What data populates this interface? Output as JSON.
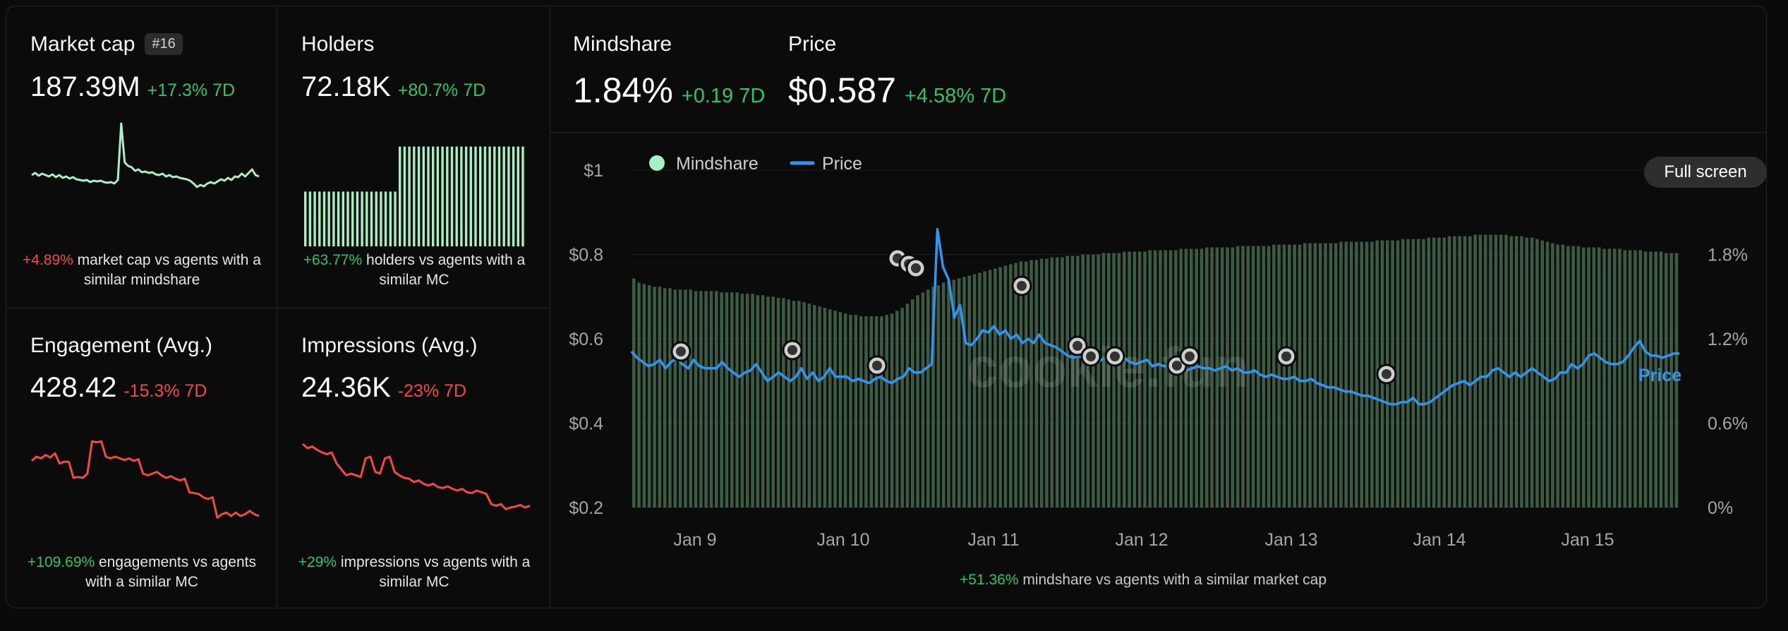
{
  "colors": {
    "green": "#31c463",
    "red": "#f04a43",
    "mint": "#a6f0c6",
    "blue": "#2f96f0",
    "bar": "#3d5a43"
  },
  "cards": {
    "market_cap": {
      "title": "Market cap",
      "rank": "#16",
      "value": "187.39M",
      "change": "+17.3% 7D",
      "foot_pct": "+4.89%",
      "foot_text": " market cap vs agents with a similar mindshare"
    },
    "holders": {
      "title": "Holders",
      "value": "72.18K",
      "change": "+80.7% 7D",
      "foot_pct": "+63.77%",
      "foot_text": " holders vs agents with a similar MC"
    },
    "engagement": {
      "title": "Engagement (Avg.)",
      "value": "428.42",
      "change": "-15.3% 7D",
      "foot_pct": "+109.69%",
      "foot_text": " engagements vs agents with a similar MC"
    },
    "impressions": {
      "title": "Impressions (Avg.)",
      "value": "24.36K",
      "change": "-23% 7D",
      "foot_pct": "+29%",
      "foot_text": " impressions vs agents with a similar MC"
    }
  },
  "header": {
    "mindshare_title": "Mindshare",
    "mindshare_value": "1.84%",
    "mindshare_change": "+0.19 7D",
    "price_title": "Price",
    "price_value": "$0.587",
    "price_change": "+4.58% 7D"
  },
  "controls": {
    "fullscreen_label": "Full screen"
  },
  "watermark": "cookie.fun",
  "chart_data": {
    "type": "bar+line",
    "legend": [
      "Mindshare",
      "Price"
    ],
    "series_label": "Price",
    "y_left": {
      "ticks": [
        "$1",
        "$0.8",
        "$0.6",
        "$0.4",
        "$0.2"
      ],
      "range": [
        0.2,
        1.0
      ]
    },
    "y_right": {
      "ticks": [
        "1.8%",
        "1.2%",
        "0.6%",
        "0%"
      ],
      "range": [
        0,
        2.4
      ]
    },
    "x_ticks": [
      "Jan 9",
      "Jan 10",
      "Jan 11",
      "Jan 12",
      "Jan 13",
      "Jan 14",
      "Jan 15"
    ],
    "mindshare_pct": [
      1.63,
      1.6,
      1.59,
      1.58,
      1.57,
      1.57,
      1.56,
      1.56,
      1.55,
      1.55,
      1.55,
      1.55,
      1.54,
      1.54,
      1.54,
      1.54,
      1.54,
      1.53,
      1.53,
      1.53,
      1.53,
      1.52,
      1.52,
      1.52,
      1.51,
      1.51,
      1.5,
      1.5,
      1.49,
      1.49,
      1.48,
      1.47,
      1.47,
      1.46,
      1.45,
      1.44,
      1.43,
      1.42,
      1.41,
      1.4,
      1.39,
      1.38,
      1.37,
      1.37,
      1.36,
      1.36,
      1.36,
      1.36,
      1.36,
      1.37,
      1.38,
      1.4,
      1.42,
      1.45,
      1.48,
      1.51,
      1.53,
      1.55,
      1.57,
      1.58,
      1.6,
      1.61,
      1.62,
      1.63,
      1.64,
      1.65,
      1.66,
      1.67,
      1.68,
      1.69,
      1.7,
      1.71,
      1.72,
      1.73,
      1.74,
      1.75,
      1.75,
      1.76,
      1.76,
      1.77,
      1.77,
      1.78,
      1.78,
      1.78,
      1.79,
      1.79,
      1.79,
      1.8,
      1.8,
      1.8,
      1.8,
      1.81,
      1.81,
      1.81,
      1.81,
      1.82,
      1.82,
      1.82,
      1.82,
      1.82,
      1.83,
      1.83,
      1.83,
      1.83,
      1.83,
      1.83,
      1.84,
      1.84,
      1.84,
      1.84,
      1.84,
      1.85,
      1.85,
      1.85,
      1.85,
      1.85,
      1.85,
      1.86,
      1.86,
      1.86,
      1.86,
      1.86,
      1.86,
      1.86,
      1.87,
      1.87,
      1.87,
      1.87,
      1.87,
      1.87,
      1.88,
      1.88,
      1.88,
      1.88,
      1.88,
      1.88,
      1.88,
      1.89,
      1.89,
      1.89,
      1.89,
      1.89,
      1.89,
      1.89,
      1.9,
      1.9,
      1.9,
      1.9,
      1.9,
      1.91,
      1.91,
      1.91,
      1.91,
      1.91,
      1.92,
      1.92,
      1.92,
      1.92,
      1.93,
      1.93,
      1.93,
      1.93,
      1.93,
      1.94,
      1.94,
      1.94,
      1.94,
      1.94,
      1.94,
      1.94,
      1.93,
      1.93,
      1.93,
      1.92,
      1.92,
      1.91,
      1.9,
      1.89,
      1.88,
      1.87,
      1.87,
      1.86,
      1.86,
      1.86,
      1.85,
      1.85,
      1.85,
      1.85,
      1.84,
      1.84,
      1.84,
      1.84,
      1.83,
      1.83,
      1.83,
      1.83,
      1.82,
      1.82,
      1.82,
      1.82,
      1.81,
      1.81,
      1.81
    ],
    "price": [
      0.57,
      0.555,
      0.545,
      0.535,
      0.54,
      0.55,
      0.53,
      0.545,
      0.555,
      0.54,
      0.53,
      0.55,
      0.535,
      0.53,
      0.53,
      0.53,
      0.545,
      0.53,
      0.52,
      0.51,
      0.52,
      0.525,
      0.54,
      0.52,
      0.5,
      0.51,
      0.52,
      0.51,
      0.5,
      0.51,
      0.53,
      0.505,
      0.52,
      0.5,
      0.51,
      0.53,
      0.51,
      0.51,
      0.51,
      0.5,
      0.505,
      0.5,
      0.495,
      0.505,
      0.51,
      0.5,
      0.495,
      0.505,
      0.51,
      0.53,
      0.52,
      0.52,
      0.53,
      0.54,
      0.86,
      0.77,
      0.74,
      0.65,
      0.68,
      0.59,
      0.585,
      0.6,
      0.62,
      0.615,
      0.63,
      0.61,
      0.62,
      0.6,
      0.61,
      0.59,
      0.6,
      0.59,
      0.61,
      0.59,
      0.585,
      0.58,
      0.57,
      0.56,
      0.555,
      0.56,
      0.55,
      0.545,
      0.545,
      0.55,
      0.56,
      0.56,
      0.545,
      0.555,
      0.545,
      0.54,
      0.545,
      0.55,
      0.535,
      0.54,
      0.535,
      0.535,
      0.54,
      0.535,
      0.525,
      0.53,
      0.535,
      0.53,
      0.53,
      0.525,
      0.53,
      0.535,
      0.525,
      0.53,
      0.52,
      0.52,
      0.525,
      0.515,
      0.51,
      0.515,
      0.51,
      0.505,
      0.505,
      0.51,
      0.5,
      0.5,
      0.505,
      0.495,
      0.49,
      0.485,
      0.485,
      0.48,
      0.475,
      0.475,
      0.47,
      0.465,
      0.465,
      0.46,
      0.455,
      0.45,
      0.445,
      0.445,
      0.45,
      0.45,
      0.46,
      0.445,
      0.445,
      0.45,
      0.46,
      0.47,
      0.48,
      0.49,
      0.495,
      0.5,
      0.49,
      0.5,
      0.51,
      0.51,
      0.525,
      0.53,
      0.52,
      0.51,
      0.52,
      0.51,
      0.52,
      0.53,
      0.52,
      0.51,
      0.5,
      0.505,
      0.52,
      0.52,
      0.54,
      0.53,
      0.54,
      0.56,
      0.565,
      0.555,
      0.545,
      0.54,
      0.54,
      0.545,
      0.56,
      0.58,
      0.595,
      0.57,
      0.56,
      0.56,
      0.555,
      0.56,
      0.565,
      0.565
    ],
    "annotation": "+51.36% mindshare vs agents with a similar market cap",
    "annotation_pct": "+51.36%",
    "annotation_text": " mindshare vs agents with a similar market cap"
  },
  "sparks": {
    "market_cap": [
      0.22,
      0.25,
      0.21,
      0.24,
      0.22,
      0.2,
      0.23,
      0.19,
      0.22,
      0.18,
      0.2,
      0.17,
      0.19,
      0.16,
      0.15,
      0.14,
      0.15,
      0.12,
      0.14,
      0.13,
      0.14,
      0.12,
      0.11,
      0.12,
      0.1,
      0.15,
      0.95,
      0.4,
      0.35,
      0.33,
      0.28,
      0.3,
      0.26,
      0.27,
      0.25,
      0.26,
      0.23,
      0.22,
      0.24,
      0.2,
      0.22,
      0.19,
      0.2,
      0.18,
      0.17,
      0.16,
      0.14,
      0.1,
      0.05,
      0.08,
      0.06,
      0.1,
      0.12,
      0.1,
      0.13,
      0.16,
      0.14,
      0.18,
      0.15,
      0.2,
      0.19,
      0.24,
      0.2,
      0.25,
      0.3,
      0.22,
      0.2
    ],
    "holders": [
      0.85,
      0.85,
      0.85,
      0.85,
      0.85,
      0.85,
      0.85,
      0.85,
      0.85,
      0.85,
      0.85,
      0.85,
      0.85,
      0.85,
      0.85,
      0.85,
      0.85,
      0.85,
      0.85,
      0.85,
      1.55,
      1.55,
      1.55,
      1.55,
      1.55,
      1.55,
      1.55,
      1.55,
      1.55,
      1.55,
      1.55,
      1.55,
      1.55,
      1.55,
      1.55,
      1.55,
      1.55,
      1.55,
      1.55,
      1.55,
      1.55,
      1.55,
      1.55,
      1.55,
      1.55,
      1.55,
      1.55
    ],
    "engagement": [
      0.75,
      0.8,
      0.78,
      0.82,
      0.79,
      0.84,
      0.72,
      0.74,
      0.74,
      0.55,
      0.56,
      0.55,
      0.6,
      0.98,
      0.97,
      0.98,
      0.8,
      0.78,
      0.8,
      0.78,
      0.76,
      0.78,
      0.75,
      0.77,
      0.6,
      0.58,
      0.6,
      0.62,
      0.58,
      0.55,
      0.57,
      0.54,
      0.52,
      0.54,
      0.38,
      0.37,
      0.36,
      0.32,
      0.3,
      0.32,
      0.08,
      0.12,
      0.14,
      0.1,
      0.14,
      0.1,
      0.12,
      0.16,
      0.12,
      0.1
    ],
    "impressions": [
      0.95,
      0.9,
      0.92,
      0.88,
      0.85,
      0.83,
      0.85,
      0.72,
      0.65,
      0.58,
      0.6,
      0.58,
      0.56,
      0.78,
      0.8,
      0.62,
      0.6,
      0.78,
      0.8,
      0.62,
      0.58,
      0.55,
      0.54,
      0.5,
      0.52,
      0.48,
      0.46,
      0.48,
      0.44,
      0.43,
      0.45,
      0.42,
      0.4,
      0.42,
      0.38,
      0.37,
      0.4,
      0.38,
      0.36,
      0.24,
      0.22,
      0.24,
      0.18,
      0.2,
      0.21,
      0.23,
      0.2,
      0.22
    ]
  }
}
